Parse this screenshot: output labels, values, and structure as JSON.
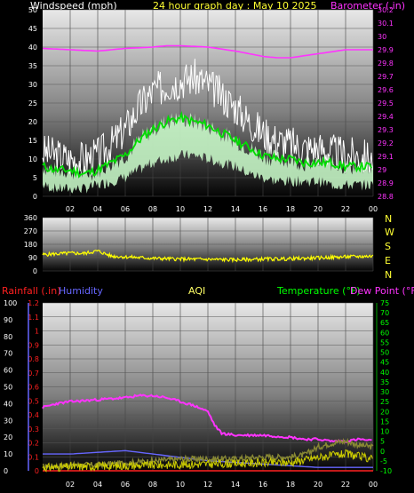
{
  "header": {
    "windspeed_label": "Windspeed (mph)",
    "date_title": "24 hour graph day : May 10 2025",
    "barometer_label": "Barometer (.in)"
  },
  "rain_panel": {
    "rainfall_label": "Rainfall (.in)",
    "humidity_label": "Humidity",
    "aqi_label": "AQI",
    "temperature_label": "Temperature (°F)",
    "dewpoint_label": "Dew Point (°F)"
  },
  "direction_labels": [
    "N",
    "W",
    "S",
    "E",
    "N"
  ],
  "colors": {
    "barometer": "#ff33ff",
    "gust": "#ffffff",
    "wind_avg": "#00dd00",
    "wind_fill": "#ccffcc",
    "direction": "#ffff00",
    "rainfall": "#ff2020",
    "humidity": "#6666ff",
    "aqi": "#ffff66",
    "temperature": "#00ff00",
    "dewpoint": "#ff33ff",
    "dew_series": "#ff33ff",
    "temp_series": "#888833",
    "humid_series": "#6666ff",
    "aqi_series": "#cccc00"
  },
  "chart_data": [
    {
      "type": "line",
      "name_key": "wind",
      "xticks": [
        "02",
        "04",
        "06",
        "08",
        "10",
        "12",
        "14",
        "16",
        "18",
        "20",
        "22",
        "00"
      ],
      "ylim": [
        0,
        50
      ],
      "yticks": [
        0,
        5,
        10,
        15,
        20,
        25,
        30,
        35,
        40,
        45,
        50
      ],
      "y2lim": [
        28.8,
        30.2
      ],
      "y2ticks": [
        28.8,
        28.9,
        29,
        29.1,
        29.2,
        29.3,
        29.4,
        29.5,
        29.6,
        29.7,
        29.8,
        29.9,
        30,
        30.1,
        30.2
      ],
      "series": [
        {
          "key": "gust",
          "x": [
            0,
            1,
            2,
            3,
            4,
            5,
            6,
            7,
            8,
            9,
            10,
            11,
            12,
            13,
            14,
            15,
            16,
            17,
            18,
            19,
            20,
            21,
            22,
            23,
            24
          ],
          "values": [
            12,
            11,
            10,
            10,
            11,
            14,
            18,
            24,
            28,
            30,
            31,
            32,
            30,
            27,
            24,
            20,
            17,
            15,
            14,
            13,
            13,
            12,
            11,
            11,
            10
          ]
        },
        {
          "key": "wind_avg",
          "x": [
            0,
            1,
            2,
            3,
            4,
            5,
            6,
            7,
            8,
            9,
            10,
            11,
            12,
            13,
            14,
            15,
            16,
            17,
            18,
            19,
            20,
            21,
            22,
            23,
            24
          ],
          "values": [
            8,
            7,
            7,
            6,
            7,
            9,
            11,
            15,
            18,
            20,
            21,
            20,
            19,
            17,
            15,
            13,
            11,
            10,
            10,
            9,
            9,
            9,
            8,
            8,
            8
          ]
        },
        {
          "key": "wind_min",
          "x": [
            0,
            1,
            2,
            3,
            4,
            5,
            6,
            7,
            8,
            9,
            10,
            11,
            12,
            13,
            14,
            15,
            16,
            17,
            18,
            19,
            20,
            21,
            22,
            23,
            24
          ],
          "values": [
            3,
            2,
            2,
            2,
            3,
            4,
            5,
            7,
            9,
            10,
            11,
            11,
            10,
            9,
            8,
            6,
            5,
            4,
            4,
            4,
            4,
            3,
            3,
            3,
            3
          ]
        },
        {
          "key": "barometer",
          "x": [
            0,
            2,
            4,
            6,
            8,
            9,
            10,
            12,
            14,
            16,
            17,
            18,
            20,
            22,
            24
          ],
          "values": [
            29.91,
            29.9,
            29.89,
            29.91,
            29.92,
            29.93,
            29.93,
            29.92,
            29.89,
            29.85,
            29.84,
            29.84,
            29.87,
            29.9,
            29.9
          ]
        }
      ]
    },
    {
      "type": "line",
      "name_key": "direction",
      "ylim": [
        0,
        360
      ],
      "yticks": [
        0,
        90,
        180,
        270,
        360
      ],
      "series": [
        {
          "key": "direction",
          "x": [
            0,
            1,
            2,
            3,
            4,
            5,
            6,
            7,
            8,
            10,
            12,
            14,
            16,
            18,
            20,
            22,
            24
          ],
          "values": [
            110,
            115,
            120,
            118,
            135,
            100,
            95,
            90,
            85,
            80,
            78,
            75,
            80,
            82,
            88,
            95,
            100
          ]
        }
      ]
    },
    {
      "type": "line",
      "name_key": "rain",
      "ylim_rain": [
        0,
        1.2
      ],
      "yticks_rain": [
        0,
        0.1,
        0.2,
        0.3,
        0.4,
        0.5,
        0.6,
        0.7,
        0.8,
        0.9,
        1,
        1.1,
        1.2
      ],
      "ylim_pct": [
        0,
        100
      ],
      "yticks_pct": [
        0,
        10,
        20,
        30,
        40,
        50,
        60,
        70,
        80,
        90,
        100
      ],
      "ylim_temp": [
        -10,
        75
      ],
      "yticks_temp": [
        -10,
        -5,
        0,
        5,
        10,
        15,
        20,
        25,
        30,
        35,
        40,
        45,
        50,
        55,
        60,
        65,
        70,
        75
      ],
      "series": [
        {
          "key": "dew_series",
          "axis": "temp",
          "x": [
            0,
            1,
            2,
            4,
            6,
            7,
            8,
            9,
            10,
            11,
            12,
            12.5,
            13,
            14,
            16,
            18,
            19,
            20,
            21,
            22,
            23,
            24
          ],
          "values": [
            22,
            24,
            25,
            26,
            27,
            28,
            28,
            27,
            25,
            23,
            20,
            13,
            9,
            8,
            8,
            7,
            6,
            6,
            5,
            5,
            6,
            5
          ]
        },
        {
          "key": "humid_series",
          "axis": "pct",
          "x": [
            0,
            2,
            4,
            6,
            8,
            10,
            12,
            14,
            16,
            18,
            20,
            22,
            24
          ],
          "values": [
            10,
            10,
            11,
            12,
            10,
            8,
            6,
            5,
            4,
            3,
            2,
            2,
            2
          ]
        },
        {
          "key": "temp_series",
          "axis": "temp",
          "x": [
            0,
            2,
            4,
            6,
            8,
            10,
            12,
            14,
            16,
            18,
            19,
            20,
            21,
            22,
            23,
            24
          ],
          "values": [
            -8,
            -7,
            -7,
            -6,
            -5,
            -4,
            -4,
            -4,
            -3,
            -3,
            -2,
            2,
            4,
            5,
            3,
            2
          ]
        },
        {
          "key": "rain_series",
          "axis": "rain",
          "x": [
            0,
            24
          ],
          "values": [
            0,
            0
          ]
        }
      ]
    }
  ]
}
